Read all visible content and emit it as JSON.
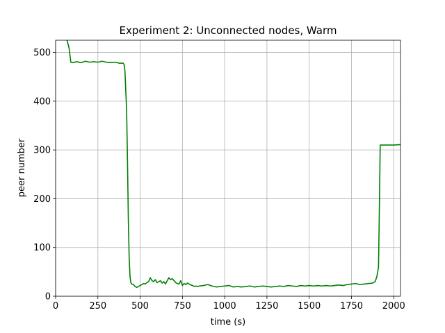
{
  "chart_data": {
    "type": "line",
    "title": "Experiment 2: Unconnected nodes, Warm",
    "xlabel": "time (s)",
    "ylabel": "peer number",
    "xlim": [
      0,
      2040
    ],
    "ylim": [
      0,
      525
    ],
    "xticks": [
      0,
      250,
      500,
      750,
      1000,
      1250,
      1500,
      1750,
      2000
    ],
    "yticks": [
      0,
      100,
      200,
      300,
      400,
      500
    ],
    "grid": true,
    "series": [
      {
        "color": "#008000",
        "x": [
          0,
          60,
          70,
          80,
          90,
          100,
          125,
          150,
          175,
          200,
          225,
          250,
          275,
          300,
          325,
          350,
          375,
          400,
          405,
          410,
          420,
          425,
          430,
          435,
          440,
          445,
          450,
          460,
          470,
          480,
          490,
          500,
          510,
          520,
          530,
          540,
          550,
          560,
          570,
          580,
          590,
          600,
          610,
          620,
          630,
          640,
          650,
          660,
          670,
          680,
          690,
          700,
          710,
          720,
          730,
          740,
          750,
          760,
          770,
          780,
          790,
          800,
          810,
          820,
          830,
          840,
          850,
          875,
          900,
          925,
          950,
          975,
          1000,
          1025,
          1050,
          1075,
          1100,
          1125,
          1150,
          1175,
          1200,
          1225,
          1250,
          1275,
          1300,
          1325,
          1350,
          1375,
          1400,
          1425,
          1450,
          1475,
          1500,
          1525,
          1550,
          1575,
          1600,
          1625,
          1650,
          1675,
          1700,
          1725,
          1750,
          1775,
          1800,
          1825,
          1850,
          1875,
          1890,
          1900,
          1910,
          1915,
          1920,
          1925,
          1950,
          2000,
          2040
        ],
        "y": [
          535,
          532,
          522,
          508,
          480,
          479,
          481,
          479,
          482,
          480,
          481,
          480,
          482,
          480,
          479,
          480,
          478,
          478,
          475,
          462,
          380,
          280,
          160,
          80,
          40,
          28,
          25,
          24,
          20,
          18,
          20,
          22,
          24,
          26,
          25,
          28,
          30,
          38,
          32,
          30,
          34,
          28,
          30,
          32,
          27,
          30,
          25,
          32,
          38,
          34,
          36,
          32,
          28,
          26,
          25,
          32,
          22,
          26,
          24,
          27,
          25,
          23,
          22,
          20,
          21,
          20,
          21,
          22,
          24,
          21,
          19,
          20,
          21,
          22,
          19,
          20,
          19,
          20,
          21,
          19,
          20,
          21,
          20,
          19,
          20,
          21,
          20,
          22,
          21,
          20,
          22,
          21,
          22,
          21,
          22,
          21,
          22,
          21,
          22,
          23,
          22,
          24,
          25,
          26,
          24,
          25,
          26,
          27,
          30,
          40,
          60,
          180,
          310,
          310,
          310,
          310,
          311
        ]
      }
    ]
  }
}
